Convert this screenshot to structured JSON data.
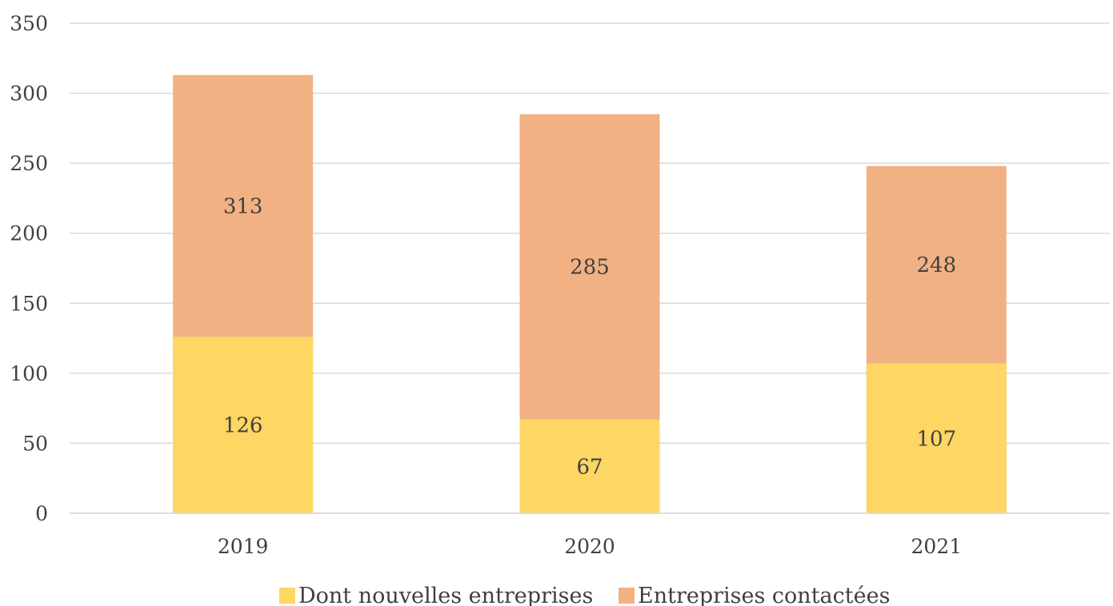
{
  "chart_data": {
    "type": "bar",
    "stacked": false,
    "overlap": true,
    "categories": [
      "2019",
      "2020",
      "2021"
    ],
    "series": [
      {
        "name": "Dont nouvelles entreprises",
        "values": [
          126,
          67,
          107
        ],
        "color": "#fdd663"
      },
      {
        "name": "Entreprises contactées",
        "values": [
          313,
          285,
          248
        ],
        "color": "#f2b183"
      }
    ],
    "ylim": [
      0,
      350
    ],
    "yticks": [
      "0",
      "50",
      "100",
      "150",
      "200",
      "250",
      "300",
      "350"
    ],
    "grid": true,
    "legend_position": "bottom",
    "title": "",
    "xlabel": "",
    "ylabel": ""
  }
}
